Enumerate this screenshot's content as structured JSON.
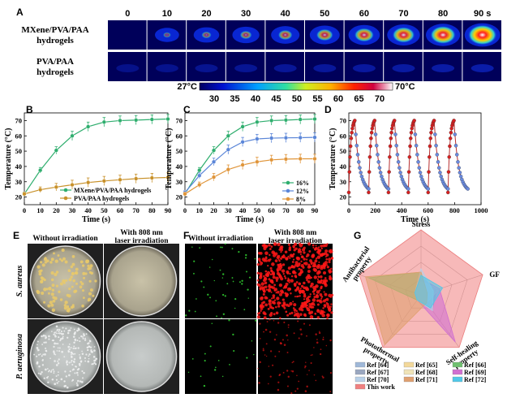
{
  "figure": {
    "panel_letters": [
      "A",
      "B",
      "C",
      "D",
      "E",
      "F",
      "G"
    ],
    "colors": {
      "red": "#d62020",
      "blue": "#4a6fd8",
      "green": "#2fae6e",
      "gold": "#c8912a",
      "light_blue": "#5b86d8",
      "orange": "#e0953a",
      "pink": "#e86f6f"
    }
  },
  "panel_a": {
    "time_labels": [
      "0",
      "10",
      "20",
      "30",
      "40",
      "50",
      "60",
      "70",
      "80",
      "90 s"
    ],
    "row_labels": [
      "MXene/PVA/PAA hydrogels",
      "PVA/PAA hydrogels"
    ],
    "row_label_lines": [
      [
        "MXene/PVA/PAA",
        "hydrogels"
      ],
      [
        "PVA/PAA",
        "hydrogels"
      ]
    ],
    "colorbar": {
      "low_label": "27°C",
      "high_label": "70°C",
      "ticks": [
        "30",
        "35",
        "40",
        "45",
        "50",
        "55",
        "60",
        "65",
        "70"
      ]
    }
  },
  "chart_data": [
    {
      "panel": "B",
      "type": "line",
      "xlabel": "Time (s)",
      "ylabel": "Temperature (°C)",
      "xlim": [
        0,
        90
      ],
      "ylim": [
        15,
        75
      ],
      "x": [
        0,
        10,
        20,
        30,
        40,
        50,
        60,
        70,
        80,
        90
      ],
      "xticks": [
        0,
        10,
        20,
        30,
        40,
        50,
        60,
        70,
        80,
        90
      ],
      "yticks": [
        20,
        30,
        40,
        50,
        60,
        70
      ],
      "legend_position": "bottom-right",
      "series": [
        {
          "name": "MXene/PVA/PAA hydrogels",
          "color": "#2fae6e",
          "values": [
            22,
            37.5,
            50.5,
            60,
            66,
            69,
            70,
            70.3,
            70.7,
            71
          ]
        },
        {
          "name": "PVA/PAA hydrogels",
          "color": "#c8912a",
          "values": [
            22,
            24.8,
            26.5,
            28,
            29.5,
            30.5,
            31.3,
            32,
            32.5,
            32.8
          ]
        }
      ]
    },
    {
      "panel": "C",
      "type": "line",
      "xlabel": "Time (s)",
      "ylabel": "Temperature (°C)",
      "xlim": [
        0,
        90
      ],
      "ylim": [
        15,
        75
      ],
      "x": [
        0,
        10,
        20,
        30,
        40,
        50,
        60,
        70,
        80,
        90
      ],
      "xticks": [
        0,
        10,
        20,
        30,
        40,
        50,
        60,
        70,
        80,
        90
      ],
      "yticks": [
        20,
        30,
        40,
        50,
        60,
        70
      ],
      "legend_position": "bottom-right",
      "series": [
        {
          "name": "16%",
          "color": "#2fae6e",
          "values": [
            22,
            37.5,
            50.5,
            60,
            66,
            69,
            70,
            70.3,
            70.7,
            71
          ]
        },
        {
          "name": "12%",
          "color": "#5b86d8",
          "values": [
            23,
            34,
            43,
            51,
            56,
            58,
            58.5,
            58.7,
            58.8,
            59
          ]
        },
        {
          "name": "8%",
          "color": "#e0953a",
          "values": [
            22,
            28,
            33,
            38,
            41,
            43,
            44.3,
            44.8,
            45,
            45
          ]
        }
      ]
    },
    {
      "panel": "D",
      "type": "line",
      "xlabel": "Time (s)",
      "ylabel": "Temperature (°C)",
      "xlim": [
        0,
        1000
      ],
      "ylim": [
        15,
        75
      ],
      "xticks": [
        0,
        200,
        400,
        600,
        800,
        1000
      ],
      "yticks": [
        20,
        30,
        40,
        50,
        60,
        70
      ],
      "cycles": 6,
      "cycle_start_s": [
        0,
        150,
        300,
        450,
        600,
        750
      ],
      "cycle_length_s": 150,
      "heat_duration_s": 45,
      "low_temp": 23,
      "high_temp": 70,
      "heating_marker_color": "#d62020",
      "cooling_marker_color": "#6a8be0"
    },
    {
      "panel": "G",
      "type": "radar",
      "axes": [
        "Stress",
        "GF",
        "Self-healing property",
        "Photothermal property",
        "Antibacterial property"
      ],
      "axis_label_lines": [
        [
          "Stress"
        ],
        [
          "GF"
        ],
        [
          "Self-healing",
          "property"
        ],
        [
          "Photothermal",
          "property"
        ],
        [
          "Antibacterial",
          "property"
        ]
      ],
      "series": [
        {
          "name": "Ref [64]",
          "color": "#9fb8d8",
          "values": [
            0.25,
            0.15,
            0.2,
            0.1,
            0.1
          ]
        },
        {
          "name": "Ref [65]",
          "color": "#f3d89a",
          "values": [
            0.3,
            0.2,
            0.25,
            0.1,
            0.1
          ]
        },
        {
          "name": "Ref [66]",
          "color": "#6fc06f",
          "values": [
            0.35,
            0.1,
            0.2,
            0.1,
            0.85
          ]
        },
        {
          "name": "Ref [67]",
          "color": "#9aa7c0",
          "values": [
            0.3,
            0.25,
            0.3,
            0.1,
            0.1
          ]
        },
        {
          "name": "Ref [68]",
          "color": "#efe3b8",
          "values": [
            0.2,
            0.3,
            0.15,
            0.1,
            0.1
          ]
        },
        {
          "name": "Ref [69]",
          "color": "#d070d0",
          "values": [
            0.25,
            0.3,
            0.9,
            0.1,
            0.1
          ]
        },
        {
          "name": "Ref [70]",
          "color": "#b8d0e8",
          "values": [
            0.4,
            0.2,
            0.3,
            0.1,
            0.1
          ]
        },
        {
          "name": "Ref [71]",
          "color": "#e0a070",
          "values": [
            0.35,
            0.1,
            0.15,
            0.95,
            0.9
          ]
        },
        {
          "name": "Ref [72]",
          "color": "#50c8e8",
          "values": [
            0.3,
            0.35,
            0.25,
            0.1,
            0.1
          ]
        },
        {
          "name": "This work",
          "color": "#f08080",
          "values": [
            1,
            1,
            1,
            1,
            1
          ]
        }
      ]
    }
  ],
  "panel_e": {
    "column_labels": [
      "Without irradiation",
      "With 808 nm laser irradiation"
    ],
    "column_label_lines": [
      [
        "Without irradiation"
      ],
      [
        "With 808 nm",
        "laser irradiation"
      ]
    ],
    "row_labels": [
      "S. aureus",
      "P. aeruginosa"
    ]
  },
  "panel_f": {
    "column_labels": [
      "Without irradiation",
      "With 808 nm laser irradiation"
    ],
    "column_label_lines": [
      [
        "Without irradiation"
      ],
      [
        "With 808 nm",
        "laser irradiation"
      ]
    ]
  }
}
